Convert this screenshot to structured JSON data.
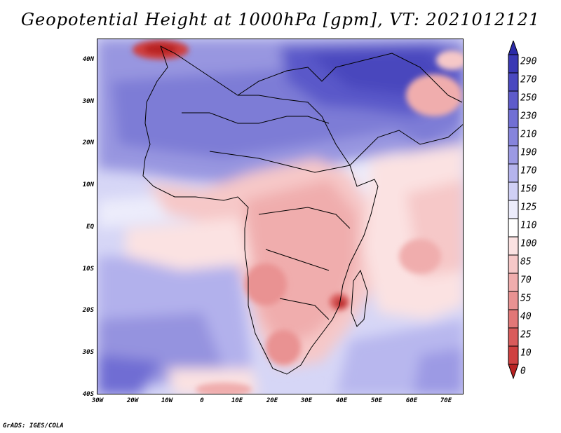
{
  "title": "Geopotential Height at 1000hPa [gpm], VT: 2021012121",
  "lat_labels": [
    "40N",
    "30N",
    "20N",
    "10N",
    "EQ",
    "10S",
    "20S",
    "30S",
    "40S"
  ],
  "lon_labels": [
    "30W",
    "20W",
    "10W",
    "0",
    "10E",
    "20E",
    "30E",
    "40E",
    "50E",
    "60E",
    "70E"
  ],
  "colorbar": {
    "labels": [
      "290",
      "270",
      "250",
      "230",
      "210",
      "190",
      "170",
      "150",
      "125",
      "110",
      "100",
      "85",
      "70",
      "55",
      "40",
      "25",
      "10",
      "0"
    ],
    "colors": [
      "#2b2aa8",
      "#3a38b4",
      "#4a48c0",
      "#5e5bcb",
      "#716fd4",
      "#8684dc",
      "#9c9ae4",
      "#b5b4ed",
      "#d0d0f5",
      "#ececfb",
      "#ffffff",
      "#fbe2e2",
      "#f6c8c8",
      "#f0adad",
      "#e99292",
      "#e27777",
      "#d95b5b",
      "#cf4040",
      "#b82222"
    ]
  },
  "credit": "GrADS: IGES/COLA"
}
